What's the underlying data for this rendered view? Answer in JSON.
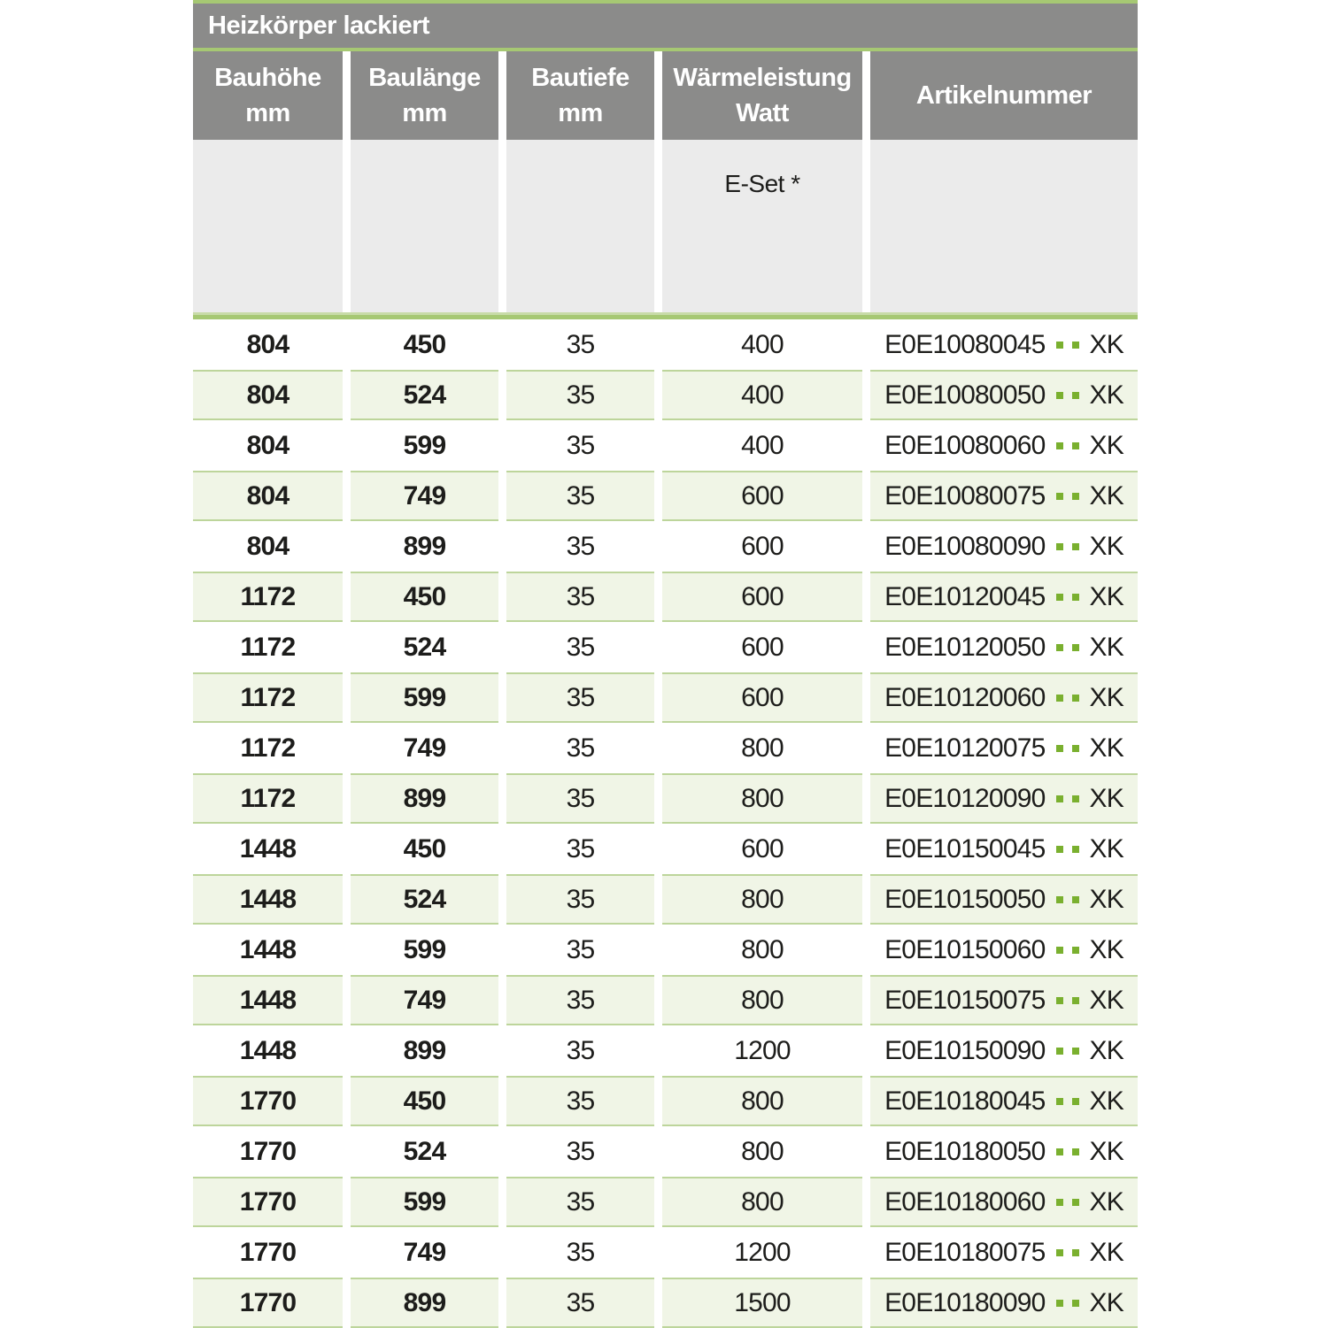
{
  "table": {
    "title": "Heizkörper lackiert",
    "columns": [
      {
        "key": "bauhoehe",
        "label": "Bauhöhe",
        "unit": "mm"
      },
      {
        "key": "baulaenge",
        "label": "Baulänge",
        "unit": "mm"
      },
      {
        "key": "bautiefe",
        "label": "Bautiefe",
        "unit": "mm"
      },
      {
        "key": "waermeleistung",
        "label": "Wärmeleistung",
        "unit": "Watt"
      },
      {
        "key": "artikelnummer",
        "label": "Artikelnummer",
        "unit": ""
      }
    ],
    "subheader": {
      "eset_label": "E-Set *"
    },
    "rows": [
      {
        "bauhoehe": "804",
        "baulaenge": "450",
        "bautiefe": "35",
        "watt": "400",
        "artikel_code": "E0E10080045",
        "artikel_suffix": "XK"
      },
      {
        "bauhoehe": "804",
        "baulaenge": "524",
        "bautiefe": "35",
        "watt": "400",
        "artikel_code": "E0E10080050",
        "artikel_suffix": "XK"
      },
      {
        "bauhoehe": "804",
        "baulaenge": "599",
        "bautiefe": "35",
        "watt": "400",
        "artikel_code": "E0E10080060",
        "artikel_suffix": "XK"
      },
      {
        "bauhoehe": "804",
        "baulaenge": "749",
        "bautiefe": "35",
        "watt": "600",
        "artikel_code": "E0E10080075",
        "artikel_suffix": "XK"
      },
      {
        "bauhoehe": "804",
        "baulaenge": "899",
        "bautiefe": "35",
        "watt": "600",
        "artikel_code": "E0E10080090",
        "artikel_suffix": "XK"
      },
      {
        "bauhoehe": "1172",
        "baulaenge": "450",
        "bautiefe": "35",
        "watt": "600",
        "artikel_code": "E0E10120045",
        "artikel_suffix": "XK"
      },
      {
        "bauhoehe": "1172",
        "baulaenge": "524",
        "bautiefe": "35",
        "watt": "600",
        "artikel_code": "E0E10120050",
        "artikel_suffix": "XK"
      },
      {
        "bauhoehe": "1172",
        "baulaenge": "599",
        "bautiefe": "35",
        "watt": "600",
        "artikel_code": "E0E10120060",
        "artikel_suffix": "XK"
      },
      {
        "bauhoehe": "1172",
        "baulaenge": "749",
        "bautiefe": "35",
        "watt": "800",
        "artikel_code": "E0E10120075",
        "artikel_suffix": "XK"
      },
      {
        "bauhoehe": "1172",
        "baulaenge": "899",
        "bautiefe": "35",
        "watt": "800",
        "artikel_code": "E0E10120090",
        "artikel_suffix": "XK"
      },
      {
        "bauhoehe": "1448",
        "baulaenge": "450",
        "bautiefe": "35",
        "watt": "600",
        "artikel_code": "E0E10150045",
        "artikel_suffix": "XK"
      },
      {
        "bauhoehe": "1448",
        "baulaenge": "524",
        "bautiefe": "35",
        "watt": "800",
        "artikel_code": "E0E10150050",
        "artikel_suffix": "XK"
      },
      {
        "bauhoehe": "1448",
        "baulaenge": "599",
        "bautiefe": "35",
        "watt": "800",
        "artikel_code": "E0E10150060",
        "artikel_suffix": "XK"
      },
      {
        "bauhoehe": "1448",
        "baulaenge": "749",
        "bautiefe": "35",
        "watt": "800",
        "artikel_code": "E0E10150075",
        "artikel_suffix": "XK"
      },
      {
        "bauhoehe": "1448",
        "baulaenge": "899",
        "bautiefe": "35",
        "watt": "1200",
        "artikel_code": "E0E10150090",
        "artikel_suffix": "XK"
      },
      {
        "bauhoehe": "1770",
        "baulaenge": "450",
        "bautiefe": "35",
        "watt": "800",
        "artikel_code": "E0E10180045",
        "artikel_suffix": "XK"
      },
      {
        "bauhoehe": "1770",
        "baulaenge": "524",
        "bautiefe": "35",
        "watt": "800",
        "artikel_code": "E0E10180050",
        "artikel_suffix": "XK"
      },
      {
        "bauhoehe": "1770",
        "baulaenge": "599",
        "bautiefe": "35",
        "watt": "800",
        "artikel_code": "E0E10180060",
        "artikel_suffix": "XK"
      },
      {
        "bauhoehe": "1770",
        "baulaenge": "749",
        "bautiefe": "35",
        "watt": "1200",
        "artikel_code": "E0E10180075",
        "artikel_suffix": "XK"
      },
      {
        "bauhoehe": "1770",
        "baulaenge": "899",
        "bautiefe": "35",
        "watt": "1500",
        "artikel_code": "E0E10180090",
        "artikel_suffix": "XK"
      }
    ]
  },
  "colors": {
    "header_gray": "#8b8b8a",
    "subheader_gray": "#ebebeb",
    "accent_line_green": "#a6c873",
    "row_border_green": "#bdd59b",
    "row_background_green": "#f0f5e6",
    "article_dot_green": "#7ab02f",
    "text_dark": "#1d1d1b"
  }
}
